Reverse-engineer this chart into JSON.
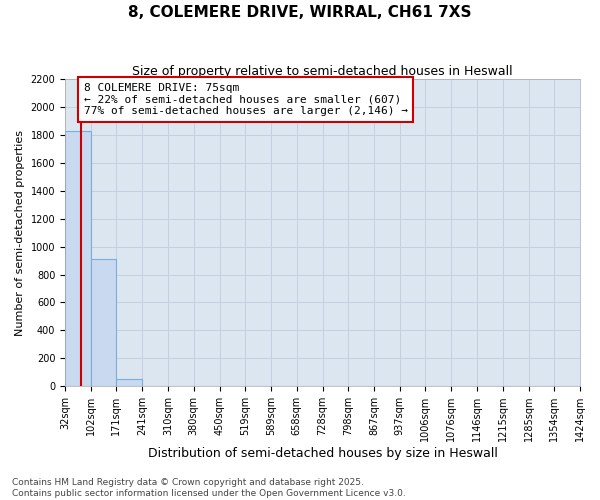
{
  "title": "8, COLEMERE DRIVE, WIRRAL, CH61 7XS",
  "subtitle": "Size of property relative to semi-detached houses in Heswall",
  "xlabel": "Distribution of semi-detached houses by size in Heswall",
  "ylabel": "Number of semi-detached properties",
  "bar_edges": [
    32,
    102,
    171,
    241,
    310,
    380,
    450,
    519,
    589,
    658,
    728,
    798,
    867,
    937,
    1006,
    1076,
    1146,
    1215,
    1285,
    1354,
    1424
  ],
  "bar_heights": [
    1830,
    910,
    55,
    0,
    0,
    0,
    0,
    0,
    0,
    0,
    0,
    0,
    0,
    0,
    0,
    0,
    0,
    0,
    0,
    0
  ],
  "bar_color": "#c9d9ef",
  "bar_edgecolor": "#7aadda",
  "property_size": 75,
  "property_line_color": "#cc0000",
  "annotation_text": "8 COLEMERE DRIVE: 75sqm\n← 22% of semi-detached houses are smaller (607)\n77% of semi-detached houses are larger (2,146) →",
  "annotation_box_color": "#cc0000",
  "ylim": [
    0,
    2200
  ],
  "yticks": [
    0,
    200,
    400,
    600,
    800,
    1000,
    1200,
    1400,
    1600,
    1800,
    2000,
    2200
  ],
  "background_color": "#dce6f0",
  "fig_background_color": "#ffffff",
  "grid_color": "#c5cfe0",
  "footer_text": "Contains HM Land Registry data © Crown copyright and database right 2025.\nContains public sector information licensed under the Open Government Licence v3.0.",
  "title_fontsize": 11,
  "subtitle_fontsize": 9,
  "ylabel_fontsize": 8,
  "xlabel_fontsize": 9,
  "tick_label_fontsize": 7,
  "annotation_fontsize": 8,
  "footer_fontsize": 6.5
}
